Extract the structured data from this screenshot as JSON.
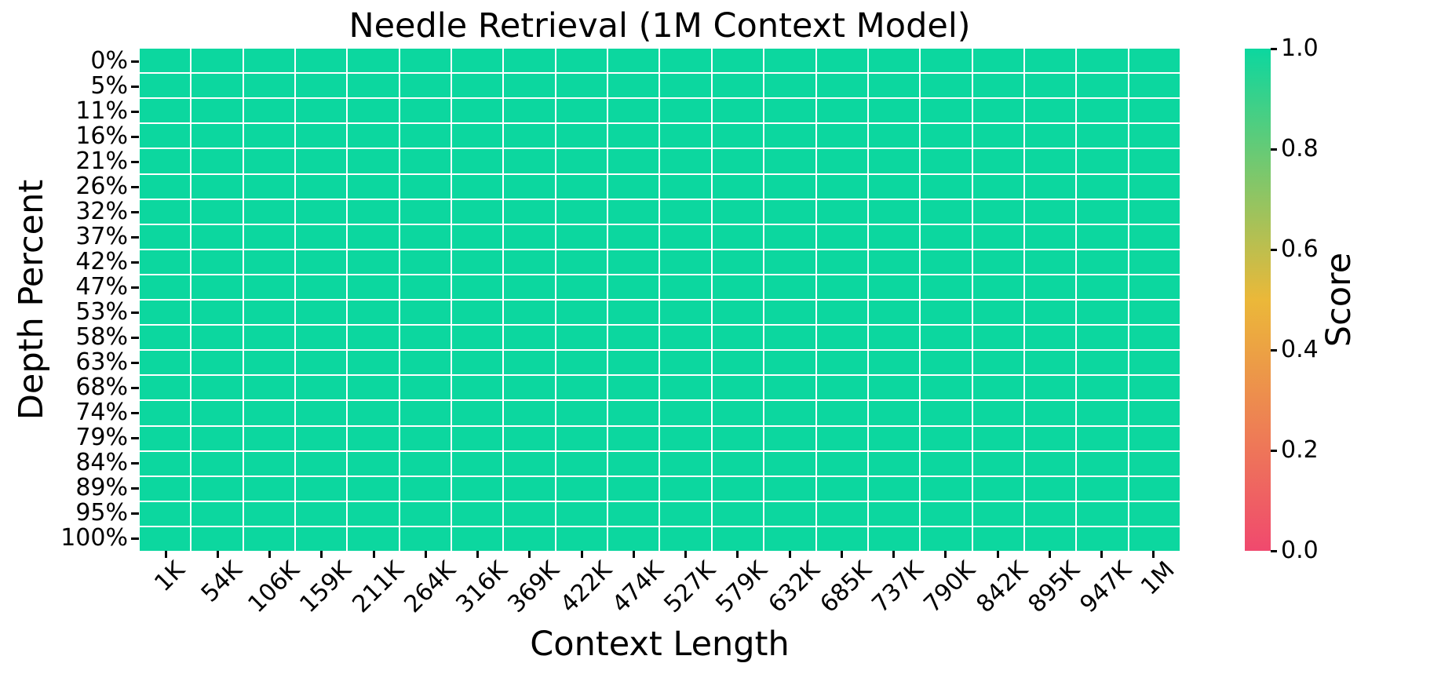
{
  "figure": {
    "title": "Needle Retrieval (1M Context Model)",
    "x_axis_label": "Context Length",
    "y_axis_label": "Depth Percent",
    "colorbar_label": "Score",
    "background_color": "#ffffff",
    "text_color": "#000000",
    "grid_line_color": "#ffffff"
  },
  "chart_data": {
    "type": "heatmap",
    "title": "Needle Retrieval (1M Context Model)",
    "xlabel": "Context Length",
    "ylabel": "Depth Percent",
    "x_categories": [
      "1K",
      "54K",
      "106K",
      "159K",
      "211K",
      "264K",
      "316K",
      "369K",
      "422K",
      "474K",
      "527K",
      "579K",
      "632K",
      "685K",
      "737K",
      "790K",
      "842K",
      "895K",
      "947K",
      "1M"
    ],
    "y_categories": [
      "0%",
      "5%",
      "11%",
      "16%",
      "21%",
      "26%",
      "32%",
      "37%",
      "42%",
      "47%",
      "53%",
      "58%",
      "63%",
      "68%",
      "74%",
      "79%",
      "84%",
      "89%",
      "95%",
      "100%"
    ],
    "matrix": [
      [
        1,
        1,
        1,
        1,
        1,
        1,
        1,
        1,
        1,
        1,
        1,
        1,
        1,
        1,
        1,
        1,
        1,
        1,
        1,
        1
      ],
      [
        1,
        1,
        1,
        1,
        1,
        1,
        1,
        1,
        1,
        1,
        1,
        1,
        1,
        1,
        1,
        1,
        1,
        1,
        1,
        1
      ],
      [
        1,
        1,
        1,
        1,
        1,
        1,
        1,
        1,
        1,
        1,
        1,
        1,
        1,
        1,
        1,
        1,
        1,
        1,
        1,
        1
      ],
      [
        1,
        1,
        1,
        1,
        1,
        1,
        1,
        1,
        1,
        1,
        1,
        1,
        1,
        1,
        1,
        1,
        1,
        1,
        1,
        1
      ],
      [
        1,
        1,
        1,
        1,
        1,
        1,
        1,
        1,
        1,
        1,
        1,
        1,
        1,
        1,
        1,
        1,
        1,
        1,
        1,
        1
      ],
      [
        1,
        1,
        1,
        1,
        1,
        1,
        1,
        1,
        1,
        1,
        1,
        1,
        1,
        1,
        1,
        1,
        1,
        1,
        1,
        1
      ],
      [
        1,
        1,
        1,
        1,
        1,
        1,
        1,
        1,
        1,
        1,
        1,
        1,
        1,
        1,
        1,
        1,
        1,
        1,
        1,
        1
      ],
      [
        1,
        1,
        1,
        1,
        1,
        1,
        1,
        1,
        1,
        1,
        1,
        1,
        1,
        1,
        1,
        1,
        1,
        1,
        1,
        1
      ],
      [
        1,
        1,
        1,
        1,
        1,
        1,
        1,
        1,
        1,
        1,
        1,
        1,
        1,
        1,
        1,
        1,
        1,
        1,
        1,
        1
      ],
      [
        1,
        1,
        1,
        1,
        1,
        1,
        1,
        1,
        1,
        1,
        1,
        1,
        1,
        1,
        1,
        1,
        1,
        1,
        1,
        1
      ],
      [
        1,
        1,
        1,
        1,
        1,
        1,
        1,
        1,
        1,
        1,
        1,
        1,
        1,
        1,
        1,
        1,
        1,
        1,
        1,
        1
      ],
      [
        1,
        1,
        1,
        1,
        1,
        1,
        1,
        1,
        1,
        1,
        1,
        1,
        1,
        1,
        1,
        1,
        1,
        1,
        1,
        1
      ],
      [
        1,
        1,
        1,
        1,
        1,
        1,
        1,
        1,
        1,
        1,
        1,
        1,
        1,
        1,
        1,
        1,
        1,
        1,
        1,
        1
      ],
      [
        1,
        1,
        1,
        1,
        1,
        1,
        1,
        1,
        1,
        1,
        1,
        1,
        1,
        1,
        1,
        1,
        1,
        1,
        1,
        1
      ],
      [
        1,
        1,
        1,
        1,
        1,
        1,
        1,
        1,
        1,
        1,
        1,
        1,
        1,
        1,
        1,
        1,
        1,
        1,
        1,
        1
      ],
      [
        1,
        1,
        1,
        1,
        1,
        1,
        1,
        1,
        1,
        1,
        1,
        1,
        1,
        1,
        1,
        1,
        1,
        1,
        1,
        1
      ],
      [
        1,
        1,
        1,
        1,
        1,
        1,
        1,
        1,
        1,
        1,
        1,
        1,
        1,
        1,
        1,
        1,
        1,
        1,
        1,
        1
      ],
      [
        1,
        1,
        1,
        1,
        1,
        1,
        1,
        1,
        1,
        1,
        1,
        1,
        1,
        1,
        1,
        1,
        1,
        1,
        1,
        1
      ],
      [
        1,
        1,
        1,
        1,
        1,
        1,
        1,
        1,
        1,
        1,
        1,
        1,
        1,
        1,
        1,
        1,
        1,
        1,
        1,
        1
      ],
      [
        1,
        1,
        1,
        1,
        1,
        1,
        1,
        1,
        1,
        1,
        1,
        1,
        1,
        1,
        1,
        1,
        1,
        1,
        1,
        1
      ]
    ],
    "value_range": [
      0.0,
      1.0
    ],
    "colormap_stops": [
      [
        0.0,
        "#F0496E"
      ],
      [
        0.5,
        "#EBB839"
      ],
      [
        1.0,
        "#0CD79F"
      ]
    ],
    "colorbar": {
      "label": "Score",
      "ticks": [
        "1.0",
        "0.8",
        "0.6",
        "0.4",
        "0.2",
        "0.0"
      ],
      "tick_values": [
        1.0,
        0.8,
        0.6,
        0.4,
        0.2,
        0.0
      ]
    },
    "legend_position": "right",
    "grid": false
  }
}
